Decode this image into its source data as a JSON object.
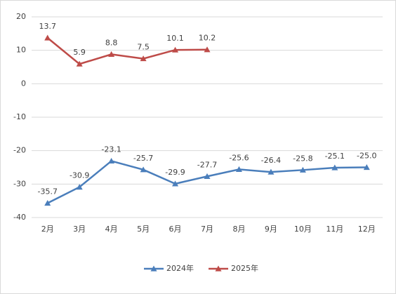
{
  "chart_data": {
    "type": "line",
    "categories": [
      "2月",
      "3月",
      "4月",
      "5月",
      "6月",
      "7月",
      "8月",
      "9月",
      "10月",
      "11月",
      "12月"
    ],
    "series": [
      {
        "name": "2024年",
        "color": "#4a7ebb",
        "values": [
          -35.7,
          -30.9,
          -23.1,
          -25.7,
          -29.9,
          -27.7,
          -25.6,
          -26.4,
          -25.8,
          -25.1,
          -25.0
        ],
        "value_labels": [
          "-35.7",
          "-30.9",
          "-23.1",
          "-25.7",
          "-29.9",
          "-27.7",
          "-25.6",
          "-26.4",
          "-25.8",
          "-25.1",
          "-25.0"
        ]
      },
      {
        "name": "2025年",
        "color": "#be4b48",
        "values": [
          13.7,
          5.9,
          8.8,
          7.5,
          10.1,
          10.2,
          null,
          null,
          null,
          null,
          null
        ],
        "value_labels": [
          "13.7",
          "5.9",
          "8.8",
          "7.5",
          "10.1",
          "10.2",
          null,
          null,
          null,
          null,
          null
        ]
      }
    ],
    "ylim": [
      -40,
      20
    ],
    "yticks": [
      -40,
      -30,
      -20,
      -10,
      0,
      10,
      20
    ],
    "grid": true,
    "legend": "bottom"
  }
}
